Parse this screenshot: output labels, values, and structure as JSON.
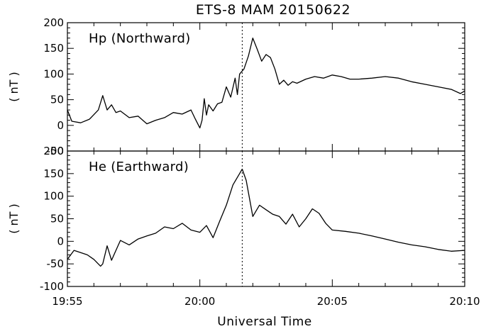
{
  "chart_data": {
    "type": "line",
    "title": "ETS-8 MAM   20150622",
    "xlabel": "Universal Time",
    "x_ticks": [
      "19:55",
      "20:00",
      "20:05",
      "20:10"
    ],
    "xlim": [
      "19:55",
      "20:10"
    ],
    "event_marker_time": "20:01:36",
    "panels": [
      {
        "annotation": "Hp (Northward)",
        "ylabel": "( nT )",
        "ylim": [
          -50,
          200
        ],
        "y_ticks": [
          "200",
          "150",
          "100",
          "50",
          "0",
          "-50"
        ],
        "series": [
          {
            "x": [
              "19:55:00",
              "19:55:10",
              "19:55:30",
              "19:55:50",
              "19:56:10",
              "19:56:20",
              "19:56:30",
              "19:56:40",
              "19:56:50",
              "19:57:00",
              "19:57:20",
              "19:57:40",
              "19:58:00",
              "19:58:20",
              "19:58:40",
              "19:59:00",
              "19:59:20",
              "19:59:40",
              "19:59:50",
              "20:00:00",
              "20:00:05",
              "20:00:10",
              "20:00:15",
              "20:00:20",
              "20:00:30",
              "20:00:40",
              "20:00:50",
              "20:01:00",
              "20:01:10",
              "20:01:20",
              "20:01:25",
              "20:01:30",
              "20:01:40",
              "20:01:50",
              "20:02:00",
              "20:02:10",
              "20:02:20",
              "20:02:30",
              "20:02:40",
              "20:02:50",
              "20:03:00",
              "20:03:10",
              "20:03:20",
              "20:03:30",
              "20:03:40",
              "20:04:00",
              "20:04:20",
              "20:04:40",
              "20:05:00",
              "20:05:20",
              "20:05:40",
              "20:06:00",
              "20:06:30",
              "20:07:00",
              "20:07:30",
              "20:08:00",
              "20:08:30",
              "20:09:00",
              "20:09:30",
              "20:09:50",
              "20:10:00"
            ],
            "y": [
              30,
              8,
              5,
              12,
              30,
              58,
              30,
              40,
              25,
              28,
              15,
              18,
              3,
              10,
              15,
              25,
              22,
              30,
              12,
              -5,
              10,
              52,
              20,
              40,
              28,
              42,
              45,
              75,
              55,
              92,
              60,
              100,
              110,
              135,
              170,
              148,
              125,
              138,
              132,
              110,
              80,
              88,
              78,
              85,
              82,
              90,
              95,
              92,
              98,
              95,
              90,
              90,
              92,
              95,
              92,
              85,
              80,
              75,
              70,
              62,
              67
            ]
          }
        ]
      },
      {
        "annotation": "He (Earthward)",
        "ylabel": "( nT )",
        "ylim": [
          -100,
          200
        ],
        "y_ticks": [
          "200",
          "150",
          "100",
          "50",
          "0",
          "-50",
          "-100"
        ],
        "series": [
          {
            "x": [
              "19:55:00",
              "19:55:15",
              "19:55:30",
              "19:55:45",
              "19:56:00",
              "19:56:15",
              "19:56:20",
              "19:56:30",
              "19:56:40",
              "19:56:50",
              "19:57:00",
              "19:57:20",
              "19:57:40",
              "19:58:00",
              "19:58:20",
              "19:58:40",
              "19:59:00",
              "19:59:20",
              "19:59:40",
              "20:00:00",
              "20:00:15",
              "20:00:30",
              "20:00:45",
              "20:01:00",
              "20:01:15",
              "20:01:30",
              "20:01:36",
              "20:01:45",
              "20:02:00",
              "20:02:15",
              "20:02:30",
              "20:02:45",
              "20:03:00",
              "20:03:15",
              "20:03:30",
              "20:03:45",
              "20:04:00",
              "20:04:15",
              "20:04:30",
              "20:04:45",
              "20:05:00",
              "20:05:30",
              "20:06:00",
              "20:06:30",
              "20:07:00",
              "20:07:30",
              "20:08:00",
              "20:08:30",
              "20:09:00",
              "20:09:30",
              "20:10:00"
            ],
            "y": [
              -40,
              -20,
              -25,
              -30,
              -40,
              -55,
              -50,
              -10,
              -42,
              -20,
              2,
              -8,
              5,
              12,
              18,
              32,
              28,
              40,
              25,
              20,
              35,
              8,
              45,
              80,
              125,
              150,
              160,
              135,
              55,
              80,
              70,
              60,
              55,
              38,
              60,
              32,
              50,
              72,
              62,
              40,
              25,
              22,
              18,
              12,
              5,
              -2,
              -8,
              -12,
              -18,
              -22,
              -20
            ]
          }
        ]
      }
    ]
  }
}
